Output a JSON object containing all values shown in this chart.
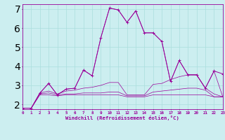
{
  "xlabel": "Windchill (Refroidissement éolien,°C)",
  "background_color": "#cceef0",
  "grid_color": "#aadddd",
  "line_color": "#990099",
  "x_values": [
    0,
    1,
    2,
    3,
    4,
    5,
    6,
    7,
    8,
    9,
    10,
    11,
    12,
    13,
    14,
    15,
    16,
    17,
    18,
    19,
    20,
    21,
    22,
    23
  ],
  "series1": [
    1.8,
    1.8,
    2.6,
    3.1,
    2.5,
    2.8,
    2.85,
    3.8,
    3.5,
    5.5,
    7.05,
    6.95,
    6.3,
    6.9,
    5.75,
    5.75,
    5.3,
    3.2,
    4.3,
    3.55,
    3.55,
    2.85,
    3.75,
    3.6
  ],
  "series2": [
    1.8,
    1.8,
    2.6,
    3.1,
    2.5,
    2.8,
    2.85,
    3.8,
    3.5,
    5.5,
    7.05,
    6.95,
    6.3,
    6.9,
    5.75,
    5.75,
    5.3,
    3.2,
    4.3,
    3.55,
    3.55,
    2.85,
    3.75,
    2.4
  ],
  "series3": [
    1.8,
    1.8,
    2.6,
    2.7,
    2.55,
    2.7,
    2.75,
    2.85,
    2.9,
    3.0,
    3.15,
    3.15,
    2.5,
    2.5,
    2.5,
    3.05,
    3.1,
    3.3,
    3.45,
    3.55,
    3.55,
    2.85,
    2.55,
    2.4
  ],
  "series4": [
    1.8,
    1.8,
    2.55,
    2.6,
    2.5,
    2.55,
    2.55,
    2.6,
    2.6,
    2.6,
    2.65,
    2.65,
    2.45,
    2.45,
    2.45,
    2.65,
    2.7,
    2.75,
    2.8,
    2.85,
    2.85,
    2.75,
    2.4,
    2.4
  ],
  "series5": [
    1.8,
    1.8,
    2.5,
    2.5,
    2.45,
    2.5,
    2.5,
    2.5,
    2.5,
    2.5,
    2.5,
    2.5,
    2.4,
    2.4,
    2.4,
    2.5,
    2.5,
    2.5,
    2.5,
    2.5,
    2.5,
    2.5,
    2.4,
    2.4
  ],
  "ylim": [
    1.75,
    7.25
  ],
  "xlim": [
    0,
    23
  ],
  "yticks": [
    2,
    3,
    4,
    5,
    6,
    7
  ]
}
